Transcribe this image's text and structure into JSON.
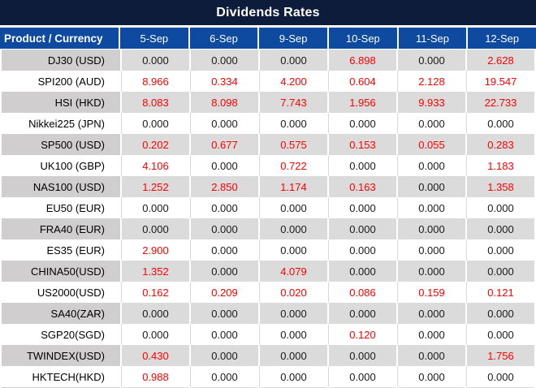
{
  "title": "Dividends Rates",
  "colors": {
    "title_bar_bg": "#0e1c3c",
    "header_bg": "#0d4aa0",
    "row_gray": "#dbdbdb",
    "row_gray_product": "#d0cece",
    "row_white": "#ffffff",
    "value_red": "#ff0000",
    "value_black": "#1a1a1a"
  },
  "chart_data": {
    "type": "table",
    "title": "Dividends Rates",
    "columns": [
      "Product / Currency",
      "5-Sep",
      "6-Sep",
      "9-Sep",
      "10-Sep",
      "11-Sep",
      "12-Sep"
    ],
    "rows": [
      {
        "product": "DJ30 (USD)",
        "values": [
          "0.000",
          "0.000",
          "0.000",
          "6.898",
          "0.000",
          "2.628"
        ],
        "highlighted": [
          false,
          false,
          false,
          true,
          false,
          true
        ]
      },
      {
        "product": "SPI200 (AUD)",
        "values": [
          "8.966",
          "0.334",
          "4.200",
          "0.604",
          "2.128",
          "19.547"
        ],
        "highlighted": [
          true,
          true,
          true,
          true,
          true,
          true
        ]
      },
      {
        "product": "HSI (HKD)",
        "values": [
          "8.083",
          "8.098",
          "7.743",
          "1.956",
          "9.933",
          "22.733"
        ],
        "highlighted": [
          true,
          true,
          true,
          true,
          true,
          true
        ]
      },
      {
        "product": "Nikkei225 (JPN)",
        "values": [
          "0.000",
          "0.000",
          "0.000",
          "0.000",
          "0.000",
          "0.000"
        ],
        "highlighted": [
          false,
          false,
          false,
          false,
          false,
          false
        ]
      },
      {
        "product": "SP500 (USD)",
        "values": [
          "0.202",
          "0.677",
          "0.575",
          "0.153",
          "0.055",
          "0.283"
        ],
        "highlighted": [
          true,
          true,
          true,
          true,
          true,
          true
        ]
      },
      {
        "product": "UK100 (GBP)",
        "values": [
          "4.106",
          "0.000",
          "0.722",
          "0.000",
          "0.000",
          "1.183"
        ],
        "highlighted": [
          true,
          false,
          true,
          false,
          false,
          true
        ]
      },
      {
        "product": "NAS100 (USD)",
        "values": [
          "1.252",
          "2.850",
          "1.174",
          "0.163",
          "0.000",
          "1.358"
        ],
        "highlighted": [
          true,
          true,
          true,
          true,
          false,
          true
        ]
      },
      {
        "product": "EU50 (EUR)",
        "values": [
          "0.000",
          "0.000",
          "0.000",
          "0.000",
          "0.000",
          "0.000"
        ],
        "highlighted": [
          false,
          false,
          false,
          false,
          false,
          false
        ]
      },
      {
        "product": "FRA40 (EUR)",
        "values": [
          "0.000",
          "0.000",
          "0.000",
          "0.000",
          "0.000",
          "0.000"
        ],
        "highlighted": [
          false,
          false,
          false,
          false,
          false,
          false
        ]
      },
      {
        "product": "ES35 (EUR)",
        "values": [
          "2.900",
          "0.000",
          "0.000",
          "0.000",
          "0.000",
          "0.000"
        ],
        "highlighted": [
          true,
          false,
          false,
          false,
          false,
          false
        ]
      },
      {
        "product": "CHINA50(USD)",
        "values": [
          "1.352",
          "0.000",
          "4.079",
          "0.000",
          "0.000",
          "0.000"
        ],
        "highlighted": [
          true,
          false,
          true,
          false,
          false,
          false
        ]
      },
      {
        "product": "US2000(USD)",
        "values": [
          "0.162",
          "0.209",
          "0.020",
          "0.086",
          "0.159",
          "0.121"
        ],
        "highlighted": [
          true,
          true,
          true,
          true,
          true,
          true
        ]
      },
      {
        "product": "SA40(ZAR)",
        "values": [
          "0.000",
          "0.000",
          "0.000",
          "0.000",
          "0.000",
          "0.000"
        ],
        "highlighted": [
          false,
          false,
          false,
          false,
          false,
          false
        ]
      },
      {
        "product": "SGP20(SGD)",
        "values": [
          "0.000",
          "0.000",
          "0.000",
          "0.120",
          "0.000",
          "0.000"
        ],
        "highlighted": [
          false,
          false,
          false,
          true,
          false,
          false
        ]
      },
      {
        "product": "TWINDEX(USD)",
        "values": [
          "0.430",
          "0.000",
          "0.000",
          "0.000",
          "0.000",
          "1.756"
        ],
        "highlighted": [
          true,
          false,
          false,
          false,
          false,
          true
        ]
      },
      {
        "product": "HKTECH(HKD)",
        "values": [
          "0.988",
          "0.000",
          "0.000",
          "0.000",
          "0.000",
          "0.000"
        ],
        "highlighted": [
          true,
          false,
          false,
          false,
          false,
          false
        ]
      }
    ]
  }
}
